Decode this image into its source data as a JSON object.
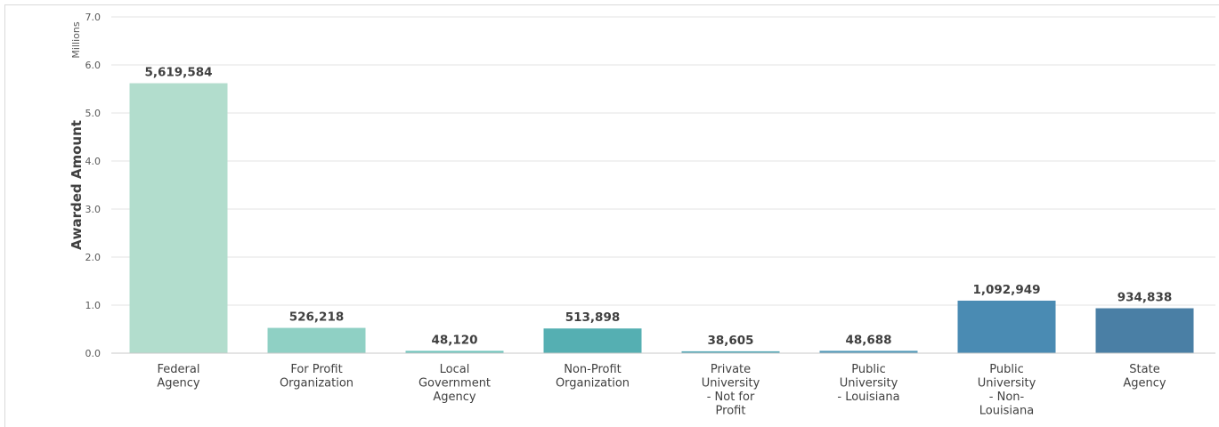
{
  "chart_data": {
    "type": "bar",
    "ylabel": "Awarded Amount",
    "unit_label": "Millions",
    "ylim": [
      0,
      7.0
    ],
    "yticks": [
      "0.0",
      "1.0",
      "2.0",
      "3.0",
      "4.0",
      "5.0",
      "6.0",
      "7.0"
    ],
    "grid": true,
    "categories": [
      [
        "Federal",
        "Agency"
      ],
      [
        "For Profit",
        "Organization"
      ],
      [
        "Local",
        "Government",
        "Agency"
      ],
      [
        "Non-Profit",
        "Organization"
      ],
      [
        "Private",
        "University",
        "- Not for",
        "Profit"
      ],
      [
        "Public",
        "University",
        "- Louisiana"
      ],
      [
        "Public",
        "University",
        "- Non-",
        "Louisiana"
      ],
      [
        "State",
        "Agency"
      ]
    ],
    "values": [
      5619584,
      526218,
      48120,
      513898,
      38605,
      48688,
      1092949,
      934838
    ],
    "value_labels": [
      "5,619,584",
      "526,218",
      "48,120",
      "513,898",
      "38,605",
      "48,688",
      "1,092,949",
      "934,838"
    ],
    "colors": [
      "#b2ddcd",
      "#8fd0c4",
      "#72c5bd",
      "#55afb2",
      "#56a8b7",
      "#5399b8",
      "#4a8bb3",
      "#4a7fa5"
    ]
  }
}
